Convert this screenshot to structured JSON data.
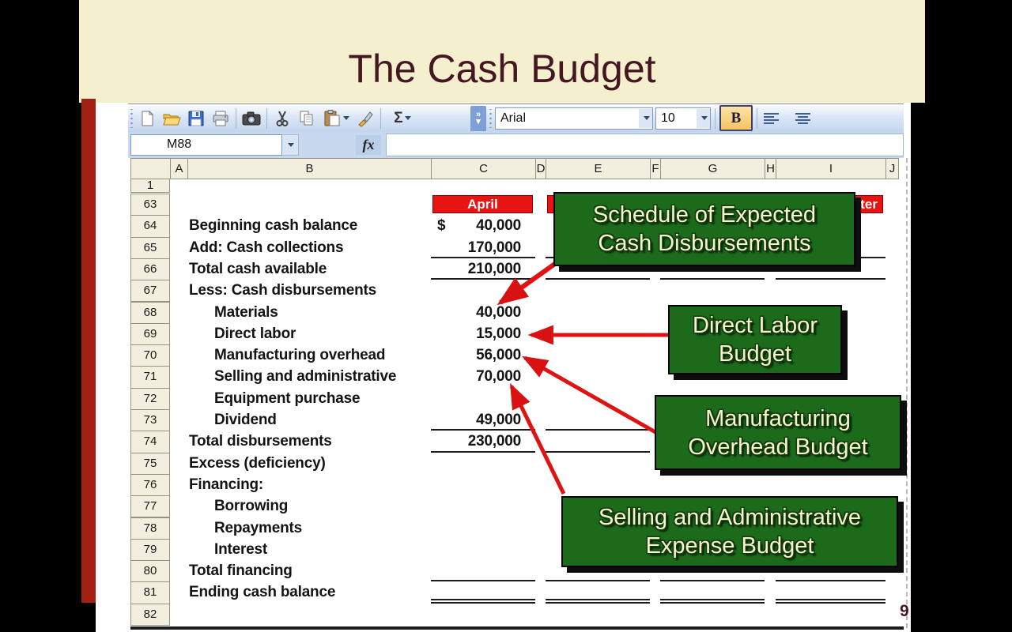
{
  "slide": {
    "title": "The Cash Budget",
    "page_number": "9"
  },
  "toolbar": {
    "font_name": "Arial",
    "font_size": "10",
    "bold_label": "B",
    "sigma_label": "Σ"
  },
  "formula_bar": {
    "name_box_value": "M88",
    "fx_label": "fx"
  },
  "sheet": {
    "column_headers": [
      "A",
      "B",
      "C",
      "D",
      "E",
      "F",
      "G",
      "H",
      "I",
      "J"
    ],
    "partial_row_label": "1",
    "month_headers": [
      {
        "col": "C",
        "label": "April",
        "align": "center"
      },
      {
        "col": "E",
        "label": "",
        "align": "center"
      },
      {
        "col": "G",
        "label": "",
        "align": "center"
      },
      {
        "col": "I",
        "label": "Quarter",
        "align": "right"
      }
    ],
    "rows": [
      {
        "num": "63",
        "label": "",
        "value": "",
        "header_row": true
      },
      {
        "num": "64",
        "label": "Beginning cash balance",
        "currency": "$",
        "value": "40,000"
      },
      {
        "num": "65",
        "label": "Add: Cash collections",
        "value": "170,000",
        "underline": "single"
      },
      {
        "num": "66",
        "label": "Total cash available",
        "value": "210,000",
        "underline": "single"
      },
      {
        "num": "67",
        "label": "Less: Cash disbursements",
        "value": ""
      },
      {
        "num": "68",
        "label": "Materials",
        "indent": true,
        "value": "40,000"
      },
      {
        "num": "69",
        "label": "Direct labor",
        "indent": true,
        "value": "15,000"
      },
      {
        "num": "70",
        "label": "Manufacturing overhead",
        "indent": true,
        "value": "56,000"
      },
      {
        "num": "71",
        "label": "Selling and administrative",
        "indent": true,
        "value": "70,000"
      },
      {
        "num": "72",
        "label": "Equipment purchase",
        "indent": true,
        "value": "-"
      },
      {
        "num": "73",
        "label": "Dividend",
        "indent": true,
        "value": "49,000",
        "underline": "single"
      },
      {
        "num": "74",
        "label": "Total disbursements",
        "value": "230,000",
        "underline": "single"
      },
      {
        "num": "75",
        "label": "Excess (deficiency)",
        "value": ""
      },
      {
        "num": "76",
        "label": "Financing:",
        "value": ""
      },
      {
        "num": "77",
        "label": "Borrowing",
        "indent": true,
        "value": ""
      },
      {
        "num": "78",
        "label": "Repayments",
        "indent": true,
        "value": ""
      },
      {
        "num": "79",
        "label": "Interest",
        "indent": true,
        "value": ""
      },
      {
        "num": "80",
        "label": "Total financing",
        "value": "",
        "underline": "single"
      },
      {
        "num": "81",
        "label": "Ending cash balance",
        "value": "",
        "underline": "double"
      },
      {
        "num": "82",
        "label": "",
        "value": ""
      }
    ]
  },
  "callouts": [
    {
      "line1": "Schedule of Expected",
      "line2": "Cash Disbursements"
    },
    {
      "line1": "Direct Labor",
      "line2": "Budget"
    },
    {
      "line1": "Manufacturing",
      "line2": "Overhead Budget"
    },
    {
      "line1": "Selling and Administrative",
      "line2": "Expense Budget"
    }
  ],
  "colors": {
    "accent_red": "#E31616",
    "callout_green": "#1B6B1B",
    "callout_text": "#F7F4CB",
    "banner_cream": "#F4EFCD",
    "title_maroon": "#451722",
    "left_bar_red": "#A32113"
  }
}
